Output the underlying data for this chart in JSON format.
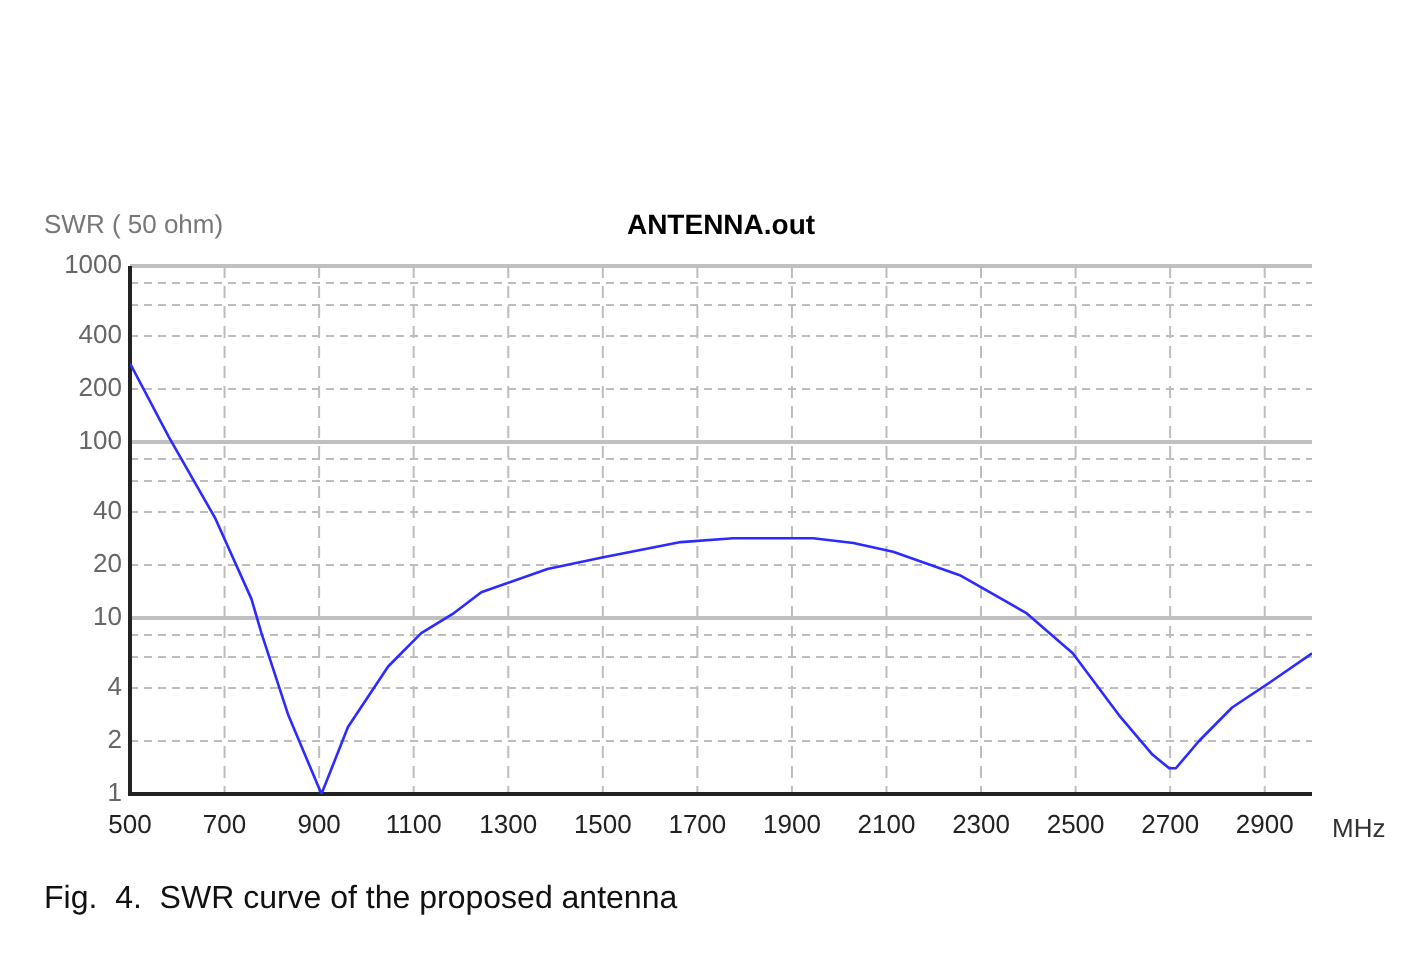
{
  "chart_data": {
    "type": "line",
    "title": "ANTENNA.out",
    "ylabel": "SWR ( 50 ohm)",
    "xlabel": "MHz",
    "annotations": [
      "Fig.  4.  SWR curve of the proposed antenna"
    ],
    "x": [
      500,
      582,
      680,
      757,
      778,
      835,
      905,
      961,
      1046,
      1116,
      1186,
      1243,
      1383,
      1496,
      1665,
      1776,
      1945,
      2030,
      2114,
      2255,
      2395,
      2494,
      2592,
      2663,
      2698,
      2712,
      2761,
      2831,
      2916,
      3000
    ],
    "series": [
      {
        "color": "#2b2bff",
        "values": [
          280,
          107,
          37,
          12.8,
          8.2,
          2.8,
          1,
          2.4,
          5.3,
          8.2,
          10.7,
          14,
          19,
          22,
          27,
          28.4,
          28.4,
          26.7,
          23.8,
          17.5,
          10.7,
          6.3,
          2.8,
          1.67,
          1.4,
          1.4,
          2,
          3.1,
          4.4,
          6.3
        ]
      }
    ],
    "xlim": [
      500,
      3000
    ],
    "xticks": [
      500,
      700,
      900,
      1100,
      1300,
      1500,
      1700,
      1900,
      2100,
      2300,
      2500,
      2700,
      2900
    ],
    "ylim": [
      1,
      1000
    ],
    "yticks": [
      1,
      2,
      4,
      {
        "value": 6,
        "label": null
      },
      {
        "value": 8,
        "label": null
      },
      10,
      20,
      40,
      {
        "value": 60,
        "label": null
      },
      {
        "value": 80,
        "label": null
      },
      100,
      200,
      400,
      {
        "value": 600,
        "label": null
      },
      {
        "value": 800,
        "label": null
      },
      1000
    ],
    "log": "y",
    "grid": true,
    "legend": false,
    "marker": "none",
    "line_style": "solid"
  }
}
